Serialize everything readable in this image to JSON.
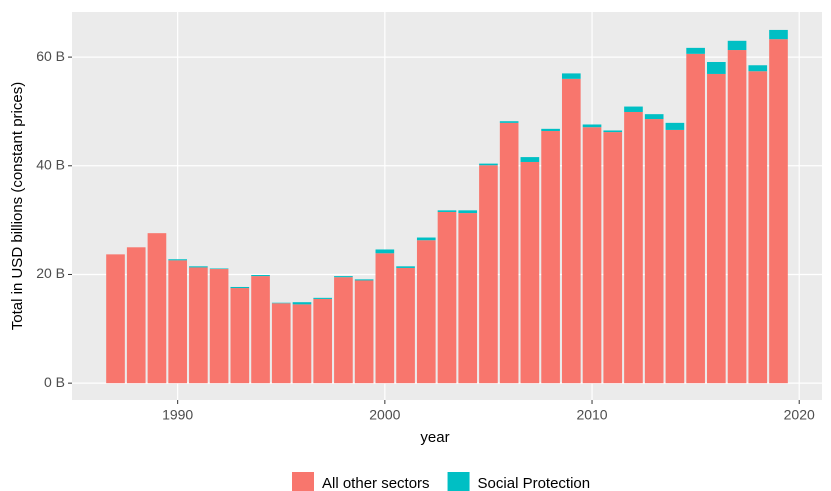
{
  "chart_data": {
    "type": "stacked_bar",
    "x_label": "year",
    "y_label": "Total in USD billions (constant prices)",
    "x": [
      1987,
      1988,
      1989,
      1990,
      1991,
      1992,
      1993,
      1994,
      1995,
      1996,
      1997,
      1998,
      1999,
      2000,
      2001,
      2002,
      2003,
      2004,
      2005,
      2006,
      2007,
      2008,
      2009,
      2010,
      2011,
      2012,
      2013,
      2014,
      2015,
      2016,
      2017,
      2018,
      2019
    ],
    "series": [
      {
        "name": "All other sectors",
        "color": "#F8766D",
        "values": [
          23.7,
          25.0,
          27.6,
          22.6,
          21.3,
          21.0,
          17.5,
          19.7,
          14.7,
          14.5,
          15.5,
          19.5,
          18.9,
          23.9,
          21.2,
          26.3,
          31.5,
          31.3,
          40.1,
          47.9,
          40.7,
          46.4,
          56.0,
          47.1,
          46.2,
          49.9,
          48.6,
          46.6,
          60.6,
          56.9,
          61.3,
          57.4,
          63.3
        ]
      },
      {
        "name": "Social Protection",
        "color": "#00BFC4",
        "values": [
          0,
          0,
          0,
          0.2,
          0.2,
          0.1,
          0.2,
          0.2,
          0.1,
          0.4,
          0.2,
          0.2,
          0.2,
          0.7,
          0.3,
          0.5,
          0.3,
          0.5,
          0.3,
          0.3,
          0.9,
          0.4,
          1.0,
          0.5,
          0.3,
          1.0,
          0.9,
          1.3,
          1.1,
          2.2,
          1.7,
          1.1,
          1.7
        ]
      }
    ],
    "xlim": [
      1984.9,
      2021.1
    ],
    "xticks": [
      1990,
      2000,
      2010,
      2020
    ],
    "ylim": [
      -3.1,
      68.3
    ],
    "yticks": [
      {
        "value": 0,
        "label": "0 B"
      },
      {
        "value": 20,
        "label": "20 B"
      },
      {
        "value": 40,
        "label": "40 B"
      },
      {
        "value": 60,
        "label": "60 B"
      }
    ],
    "grid": true,
    "legend": "bottom"
  }
}
